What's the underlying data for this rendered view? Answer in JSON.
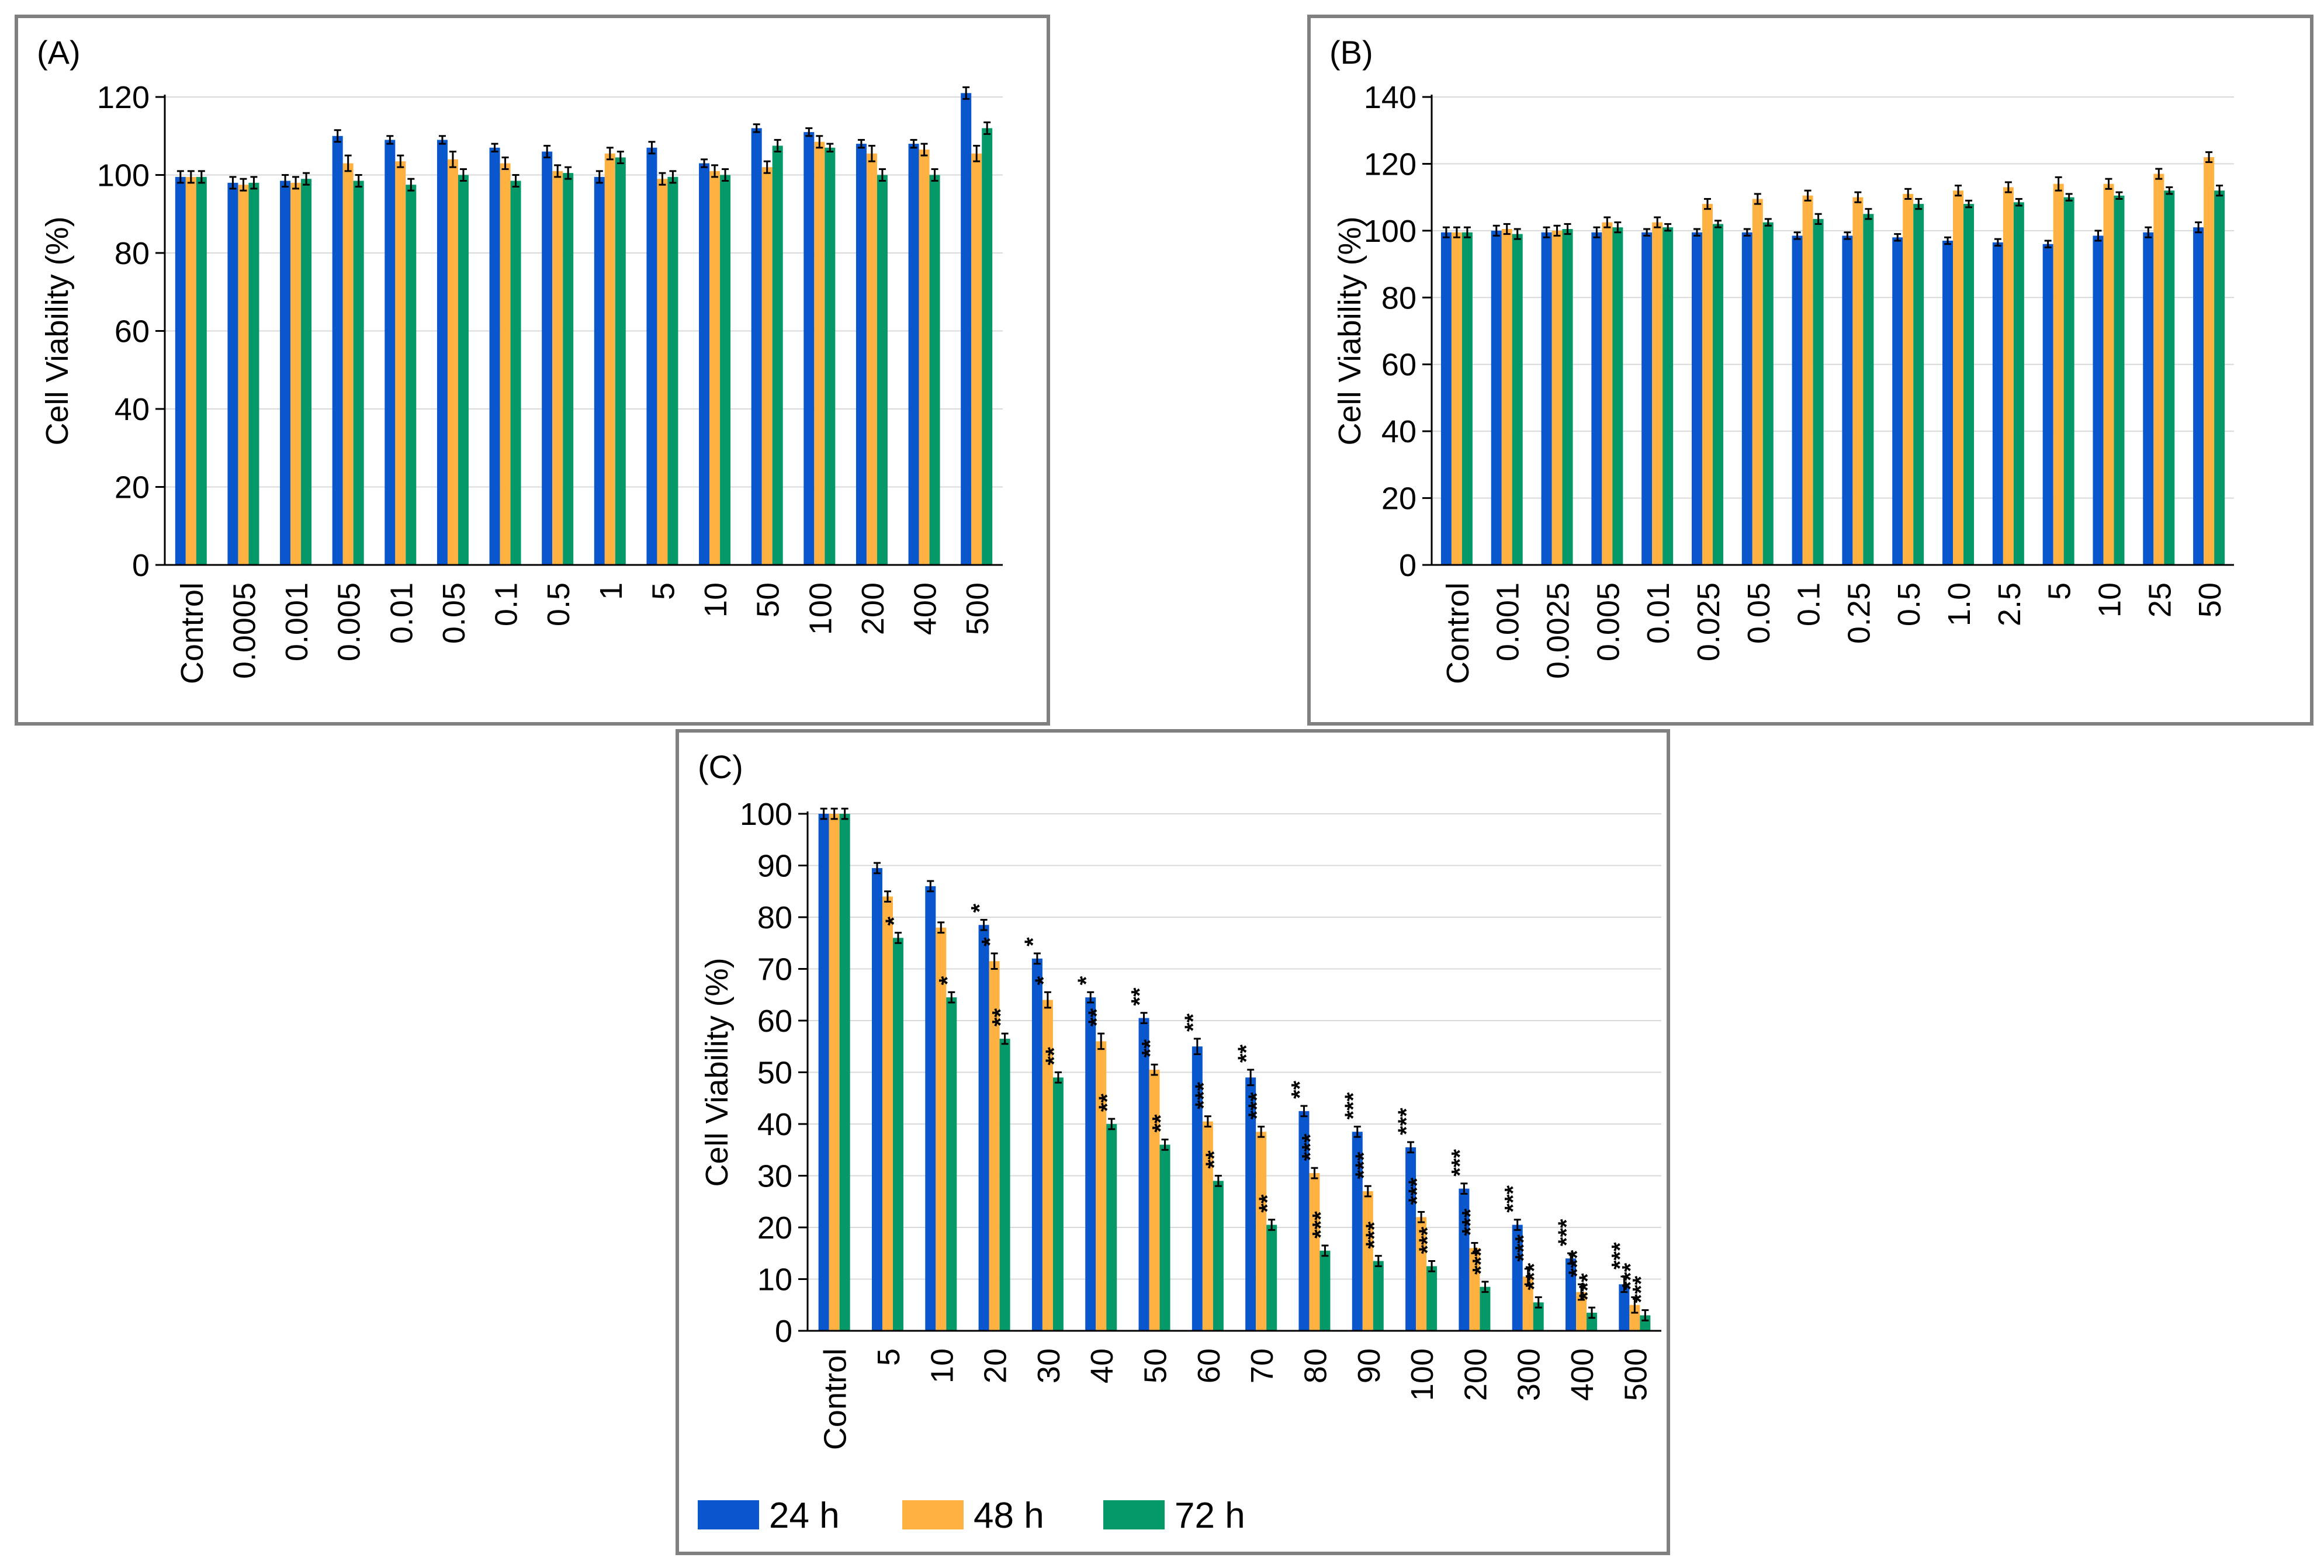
{
  "colors": {
    "s24": "#0a56cc",
    "s48": "#ffb142",
    "s72": "#05996a",
    "grid": "#d9d9d9",
    "axis": "#000000",
    "frame": "#808080"
  },
  "legend": [
    "24 h",
    "48 h",
    "72 h"
  ],
  "chart_data": [
    {
      "type": "bar",
      "panel_label": "(A)",
      "ylabel": "Cell Viability (%)",
      "ylim": [
        0,
        120
      ],
      "yticks": [
        0,
        20,
        40,
        60,
        80,
        100,
        120
      ],
      "grid": true,
      "categories": [
        "Control",
        "0.0005",
        "0.001",
        "0.005",
        "0.01",
        "0.05",
        "0.1",
        "0.5",
        "1",
        "5",
        "10",
        "50",
        "100",
        "200",
        "400",
        "500"
      ],
      "series": [
        {
          "name": "24 h",
          "values": [
            99.5,
            98,
            98.5,
            110,
            109,
            109,
            107,
            106,
            99.5,
            107,
            103,
            112,
            111,
            108,
            108,
            121
          ]
        },
        {
          "name": "48 h",
          "values": [
            99.5,
            97.5,
            98,
            103,
            103.5,
            104,
            103,
            101,
            105.5,
            99,
            101,
            102,
            108.5,
            105.5,
            106.5,
            105.5
          ]
        },
        {
          "name": "72 h",
          "values": [
            99.5,
            98,
            99,
            98.5,
            97.5,
            100,
            98.5,
            100.5,
            104.5,
            99.5,
            100,
            107.5,
            107,
            100,
            100,
            112
          ]
        }
      ],
      "errors": [
        [
          1.5,
          1.5,
          1.5,
          1.5,
          1,
          1,
          1,
          1.5,
          1.5,
          1.5,
          1,
          1,
          1,
          1,
          1,
          1.5
        ],
        [
          1.5,
          1.5,
          1.5,
          2,
          1.5,
          2,
          1.5,
          1.5,
          1.5,
          1.5,
          1.5,
          1.5,
          1.5,
          2,
          1.5,
          2
        ],
        [
          1.5,
          1.5,
          1.5,
          1.5,
          1.5,
          1.5,
          1.5,
          1.5,
          1.5,
          1.5,
          1.5,
          1.5,
          1,
          1.5,
          1.5,
          1.5
        ]
      ]
    },
    {
      "type": "bar",
      "panel_label": "(B)",
      "ylabel": "Cell Viability (%)",
      "ylim": [
        0,
        140
      ],
      "yticks": [
        0,
        20,
        40,
        60,
        80,
        100,
        120,
        140
      ],
      "grid": true,
      "categories": [
        "Control",
        "0.001",
        "0.0025",
        "0.005",
        "0.01",
        "0.025",
        "0.05",
        "0.1",
        "0.25",
        "0.5",
        "1.0",
        "2.5",
        "5",
        "10",
        "25",
        "50"
      ],
      "series": [
        {
          "name": "24 h",
          "values": [
            99.5,
            100,
            99.5,
            99.5,
            99.5,
            99.5,
            99.5,
            98.5,
            98.5,
            98,
            97,
            96.5,
            96,
            98.5,
            99.5,
            101
          ]
        },
        {
          "name": "48 h",
          "values": [
            99.5,
            100.5,
            100,
            102.5,
            102.5,
            108,
            109.5,
            110.5,
            110,
            111,
            112,
            113,
            114,
            114,
            117,
            122
          ]
        },
        {
          "name": "72 h",
          "values": [
            99.5,
            99,
            100.5,
            101,
            101,
            102,
            102.5,
            103.5,
            105,
            108,
            108,
            108.5,
            110,
            110.5,
            112,
            112
          ]
        }
      ],
      "errors": [
        [
          1.5,
          1.5,
          1.5,
          1.5,
          1,
          1,
          1,
          1,
          1,
          1,
          1,
          1,
          1,
          1.5,
          1.5,
          1.5
        ],
        [
          1.5,
          1.5,
          1.5,
          1.5,
          1.5,
          1.5,
          1.5,
          1.5,
          1.5,
          1.5,
          1.5,
          1.5,
          2,
          1.5,
          1.5,
          1.5
        ],
        [
          1.5,
          1.5,
          1.5,
          1.5,
          1,
          1,
          1,
          1.5,
          1.5,
          1.5,
          1,
          1,
          1,
          1,
          1,
          1.5
        ]
      ]
    },
    {
      "type": "bar",
      "panel_label": "(C)",
      "ylabel": "Cell Viability (%)",
      "ylim": [
        0,
        100
      ],
      "yticks": [
        0,
        10,
        20,
        30,
        40,
        50,
        60,
        70,
        80,
        90,
        100
      ],
      "grid": true,
      "legend_position": "bottom",
      "categories": [
        "Control",
        "5",
        "10",
        "20",
        "30",
        "40",
        "50",
        "60",
        "70",
        "80",
        "90",
        "100",
        "200",
        "300",
        "400",
        "500"
      ],
      "series": [
        {
          "name": "24 h",
          "values": [
            100,
            89.5,
            86,
            78.5,
            72,
            64.5,
            60.5,
            55,
            49,
            42.5,
            38.5,
            35.5,
            27.5,
            20.5,
            14,
            9
          ]
        },
        {
          "name": "48 h",
          "values": [
            100,
            84,
            78,
            71.5,
            64,
            56,
            50.5,
            40.5,
            38.5,
            30.5,
            27,
            22,
            16,
            10.5,
            7.5,
            5
          ]
        },
        {
          "name": "72 h",
          "values": [
            100,
            76,
            64.5,
            56.5,
            49,
            40,
            36,
            29,
            20.5,
            15.5,
            13.5,
            12.5,
            8.5,
            5.5,
            3.5,
            3
          ]
        }
      ],
      "errors": [
        [
          1,
          1,
          1,
          1,
          1,
          1,
          1,
          1.5,
          1.5,
          1,
          1,
          1,
          1,
          1,
          1,
          1.5
        ],
        [
          1,
          1,
          1,
          1.5,
          1.5,
          1.5,
          1,
          1,
          1,
          1,
          1,
          1,
          1,
          1.5,
          1.5,
          1.5
        ],
        [
          1,
          1,
          1,
          1,
          1,
          1,
          1,
          1,
          1,
          1,
          1,
          1,
          1,
          1,
          1,
          1
        ]
      ],
      "significance": [
        [
          "",
          "",
          "",
          "*",
          "*",
          "*",
          "**",
          "**",
          "**",
          "**",
          "***",
          "***",
          "***",
          "***",
          "***",
          "***"
        ],
        [
          "",
          "",
          "",
          "*",
          "*",
          "**",
          "**",
          "***",
          "***",
          "***",
          "***",
          "***",
          "***",
          "***",
          "***",
          "***"
        ],
        [
          "",
          "*",
          "*",
          "**",
          "**",
          "**",
          "**",
          "**",
          "**",
          "***",
          "***",
          "***",
          "***",
          "***",
          "***",
          "***"
        ]
      ]
    }
  ]
}
